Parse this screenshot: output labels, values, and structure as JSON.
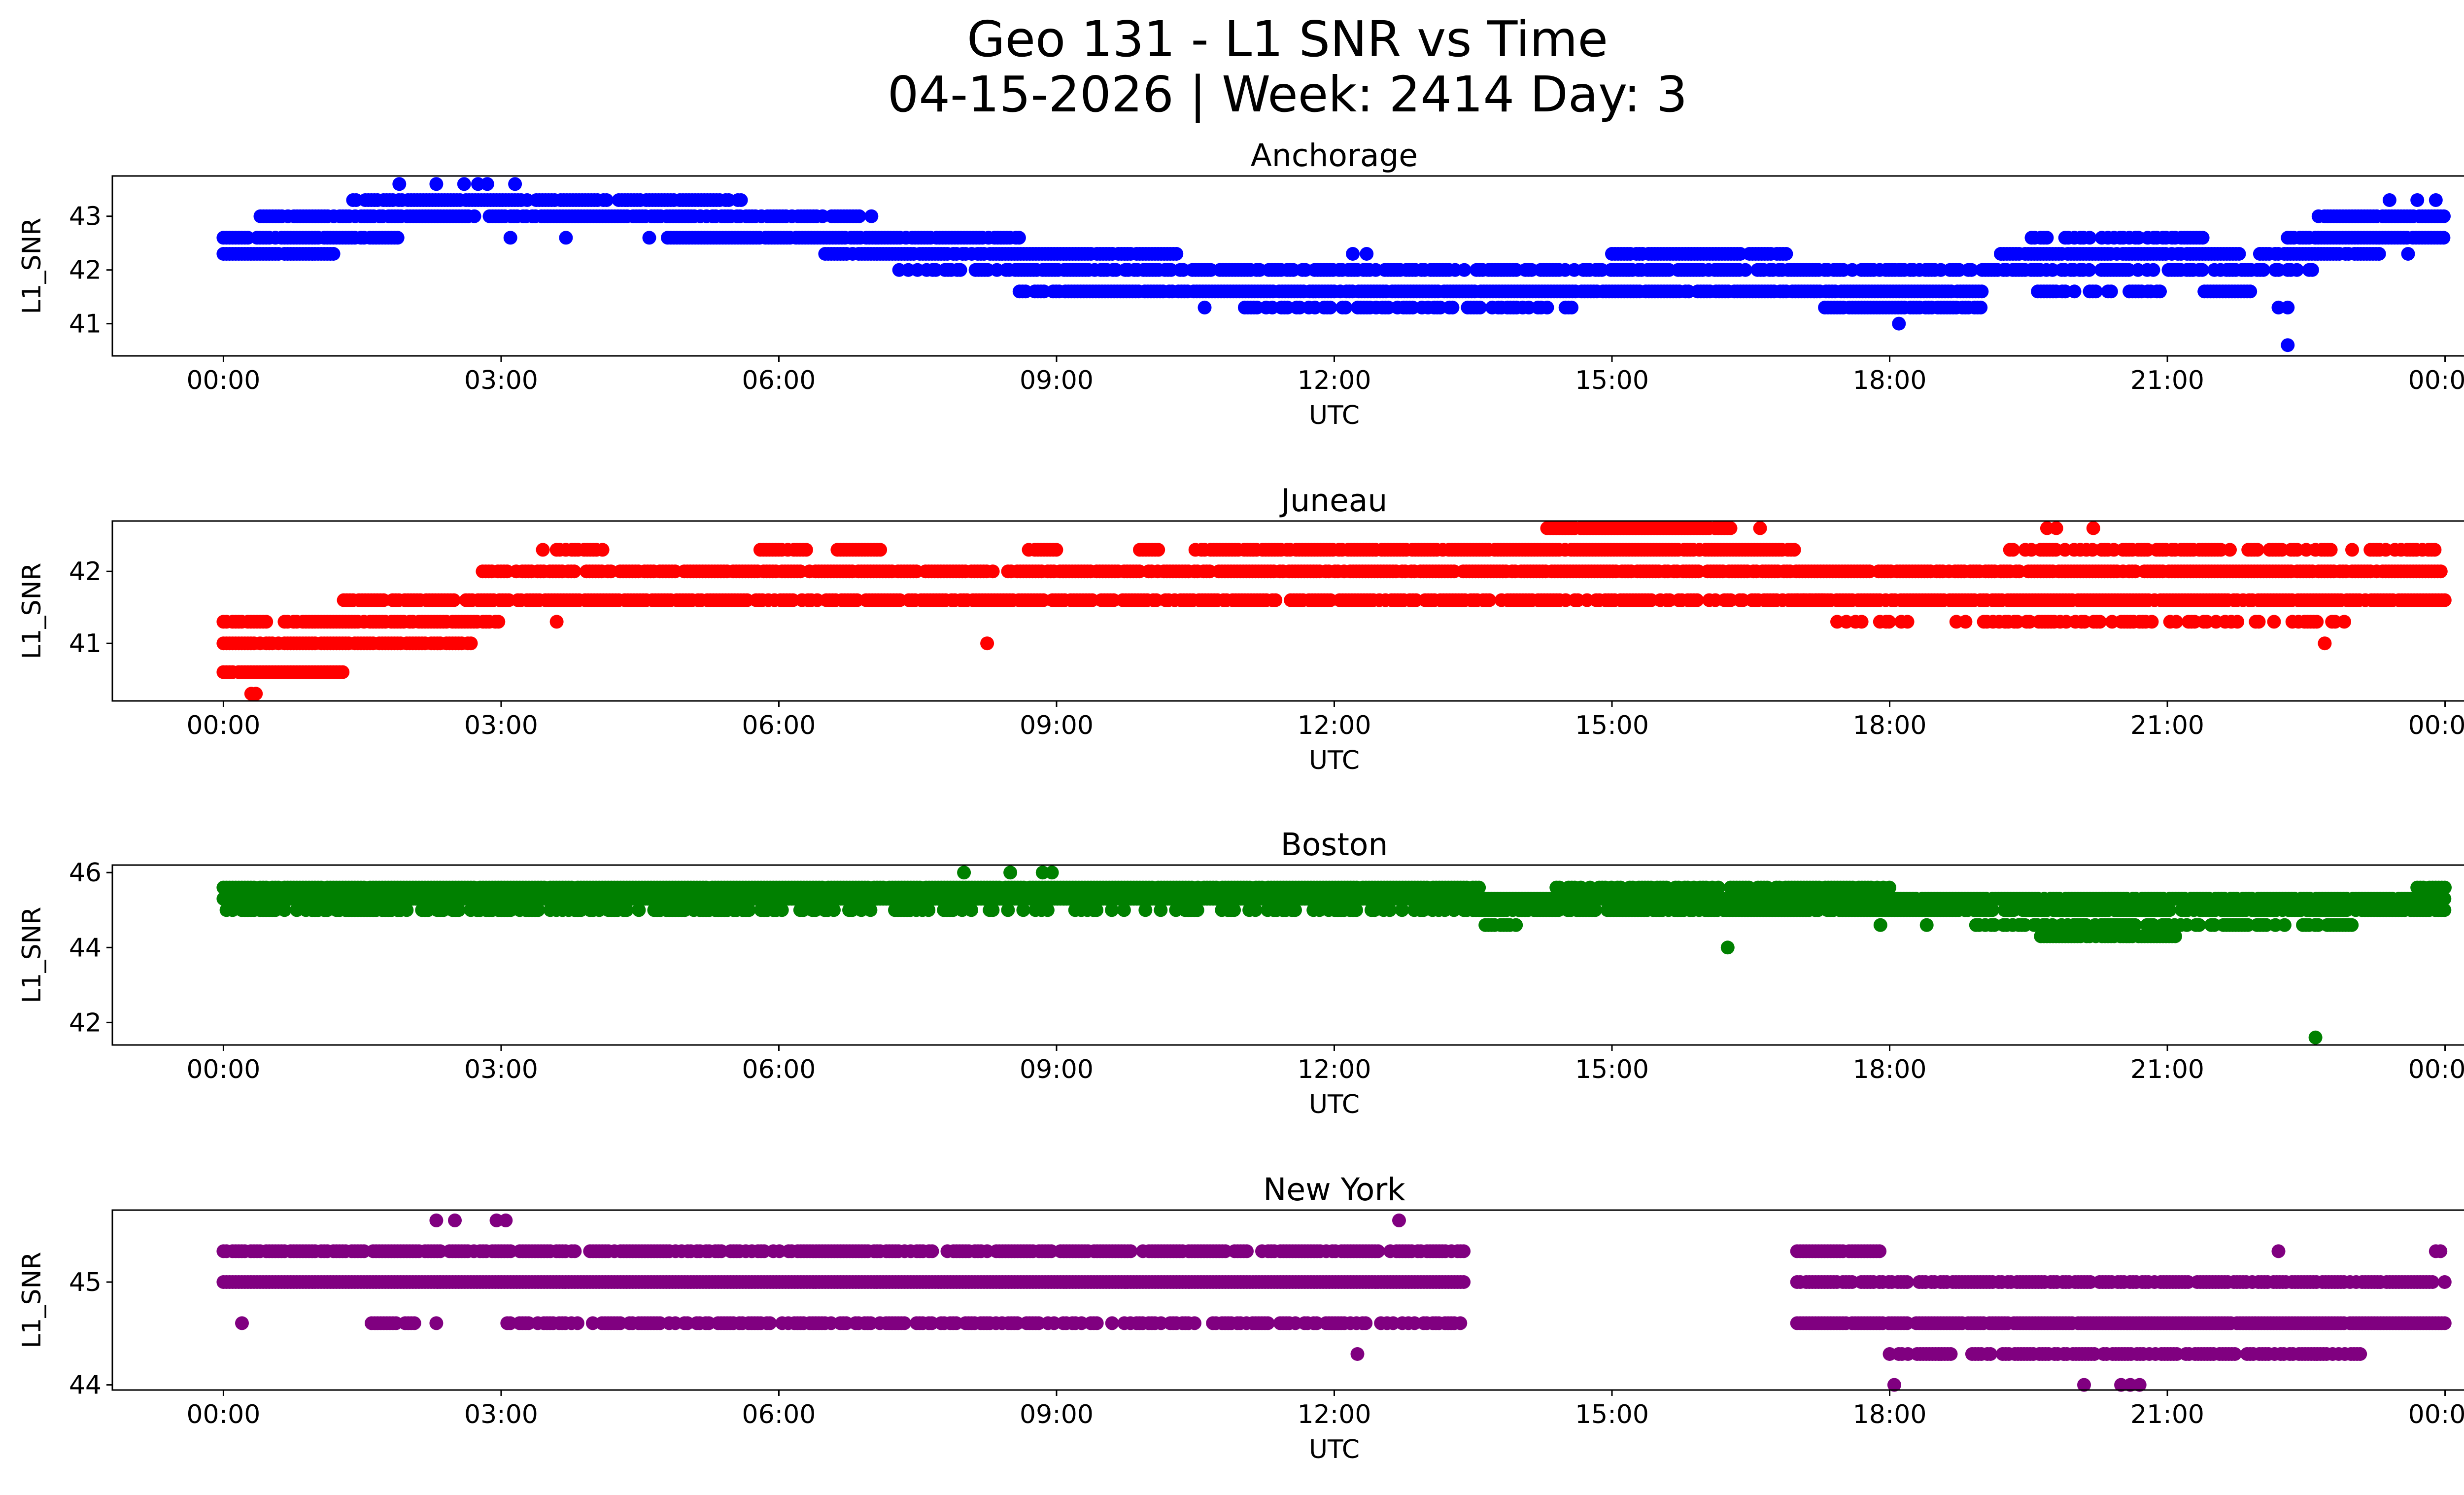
{
  "figure": {
    "title_line1": "Geo 131 - L1 SNR vs Time",
    "title_line2": "04-15-2026 | Week: 2414 Day: 3"
  },
  "chart_data": [
    {
      "type": "scatter",
      "title": "Anchorage",
      "xlabel": "UTC",
      "ylabel": "L1_SNR",
      "color": "#0000ff",
      "xlim_hours": [
        -1.2,
        25.2
      ],
      "ylim": [
        40.4,
        43.75
      ],
      "yticks": [
        41,
        42,
        43
      ],
      "xticks": [
        0,
        3,
        6,
        9,
        12,
        15,
        18,
        21,
        24
      ],
      "xtick_labels": [
        "00:00",
        "03:00",
        "06:00",
        "09:00",
        "12:00",
        "15:00",
        "18:00",
        "21:00",
        "00:00"
      ],
      "bands": [
        {
          "y": 42.3,
          "x_start": 0.0,
          "x_end": 1.2,
          "density": 0.9
        },
        {
          "y": 42.6,
          "x_start": 0.0,
          "x_end": 1.9,
          "density": 0.9
        },
        {
          "y": 43.0,
          "x_start": 0.4,
          "x_end": 6.9,
          "density": 0.85
        },
        {
          "y": 43.3,
          "x_start": 1.4,
          "x_end": 5.6,
          "density": 0.9
        },
        {
          "y": 42.6,
          "x_start": 4.8,
          "x_end": 8.6,
          "density": 0.9
        },
        {
          "y": 42.3,
          "x_start": 6.5,
          "x_end": 10.3,
          "density": 0.9
        },
        {
          "y": 42.0,
          "x_start": 7.3,
          "x_end": 18.9,
          "density": 0.7
        },
        {
          "y": 41.6,
          "x_start": 8.6,
          "x_end": 19.0,
          "density": 0.85
        },
        {
          "y": 41.3,
          "x_start": 11.0,
          "x_end": 14.6,
          "density": 0.55
        },
        {
          "y": 41.3,
          "x_start": 17.3,
          "x_end": 19.0,
          "density": 0.9
        },
        {
          "y": 42.3,
          "x_start": 15.0,
          "x_end": 16.9,
          "density": 0.9
        },
        {
          "y": 42.3,
          "x_start": 19.2,
          "x_end": 21.8,
          "density": 0.9
        },
        {
          "y": 42.6,
          "x_start": 19.5,
          "x_end": 21.4,
          "density": 0.6
        },
        {
          "y": 42.0,
          "x_start": 19.0,
          "x_end": 22.6,
          "density": 0.6
        },
        {
          "y": 41.6,
          "x_start": 19.6,
          "x_end": 21.0,
          "density": 0.5
        },
        {
          "y": 41.6,
          "x_start": 21.4,
          "x_end": 21.9,
          "density": 0.9
        },
        {
          "y": 42.3,
          "x_start": 22.0,
          "x_end": 23.3,
          "density": 0.9
        },
        {
          "y": 42.6,
          "x_start": 22.3,
          "x_end": 24.0,
          "density": 0.9
        },
        {
          "y": 43.0,
          "x_start": 22.6,
          "x_end": 24.0,
          "density": 0.9
        }
      ],
      "points": [
        [
          1.9,
          43.6
        ],
        [
          2.3,
          43.6
        ],
        [
          2.6,
          43.6
        ],
        [
          2.75,
          43.6
        ],
        [
          2.85,
          43.6
        ],
        [
          3.15,
          43.6
        ],
        [
          3.1,
          42.6
        ],
        [
          3.7,
          42.6
        ],
        [
          4.6,
          42.6
        ],
        [
          7.0,
          43.0
        ],
        [
          10.6,
          41.3
        ],
        [
          12.2,
          42.3
        ],
        [
          12.35,
          42.3
        ],
        [
          17.5,
          42.0
        ],
        [
          18.1,
          42.0
        ],
        [
          18.1,
          41.0
        ],
        [
          22.2,
          41.3
        ],
        [
          22.3,
          41.3
        ],
        [
          22.3,
          40.6
        ],
        [
          23.4,
          43.3
        ],
        [
          23.7,
          43.3
        ],
        [
          23.9,
          43.3
        ],
        [
          23.6,
          42.3
        ]
      ]
    },
    {
      "type": "scatter",
      "title": "Juneau",
      "xlabel": "UTC",
      "ylabel": "L1_SNR",
      "color": "#ff0000",
      "xlim_hours": [
        -1.2,
        25.2
      ],
      "ylim": [
        40.2,
        42.7
      ],
      "yticks": [
        41,
        42
      ],
      "xticks": [
        0,
        3,
        6,
        9,
        12,
        15,
        18,
        21,
        24
      ],
      "xtick_labels": [
        "00:00",
        "03:00",
        "06:00",
        "09:00",
        "12:00",
        "15:00",
        "18:00",
        "21:00",
        "00:00"
      ],
      "bands": [
        {
          "y": 41.0,
          "x_start": 0.0,
          "x_end": 2.7,
          "density": 0.85
        },
        {
          "y": 41.3,
          "x_start": 0.0,
          "x_end": 3.0,
          "density": 0.8
        },
        {
          "y": 40.6,
          "x_start": 0.0,
          "x_end": 1.3,
          "density": 0.85
        },
        {
          "y": 41.6,
          "x_start": 1.3,
          "x_end": 17.3,
          "density": 0.75
        },
        {
          "y": 42.0,
          "x_start": 2.8,
          "x_end": 24.0,
          "density": 0.85
        },
        {
          "y": 42.3,
          "x_start": 3.6,
          "x_end": 4.1,
          "density": 0.9
        },
        {
          "y": 42.3,
          "x_start": 5.8,
          "x_end": 6.3,
          "density": 0.9
        },
        {
          "y": 42.3,
          "x_start": 6.6,
          "x_end": 7.1,
          "density": 0.9
        },
        {
          "y": 42.3,
          "x_start": 8.7,
          "x_end": 9.0,
          "density": 0.9
        },
        {
          "y": 42.3,
          "x_start": 9.9,
          "x_end": 10.1,
          "density": 0.9
        },
        {
          "y": 42.3,
          "x_start": 10.5,
          "x_end": 17.0,
          "density": 0.9
        },
        {
          "y": 42.6,
          "x_start": 14.3,
          "x_end": 16.3,
          "density": 0.95
        },
        {
          "y": 41.6,
          "x_start": 17.0,
          "x_end": 24.0,
          "density": 0.9
        },
        {
          "y": 41.3,
          "x_start": 17.4,
          "x_end": 23.0,
          "density": 0.45
        },
        {
          "y": 42.3,
          "x_start": 19.3,
          "x_end": 23.9,
          "density": 0.5
        }
      ],
      "points": [
        [
          0.35,
          40.3
        ],
        [
          0.3,
          40.3
        ],
        [
          8.25,
          41.0
        ],
        [
          3.45,
          42.3
        ],
        [
          3.6,
          41.3
        ],
        [
          16.6,
          42.6
        ],
        [
          19.7,
          42.6
        ],
        [
          19.8,
          42.6
        ],
        [
          20.2,
          42.6
        ],
        [
          22.7,
          41.0
        ]
      ]
    },
    {
      "type": "scatter",
      "title": "Boston",
      "xlabel": "UTC",
      "ylabel": "L1_SNR",
      "color": "#008000",
      "xlim_hours": [
        -1.2,
        25.2
      ],
      "ylim": [
        41.4,
        46.2
      ],
      "yticks": [
        42,
        44,
        46
      ],
      "xticks": [
        0,
        3,
        6,
        9,
        12,
        15,
        18,
        21,
        24
      ],
      "xtick_labels": [
        "00:00",
        "03:00",
        "06:00",
        "09:00",
        "12:00",
        "15:00",
        "18:00",
        "21:00",
        "00:00"
      ],
      "bands": [
        {
          "y": 45.6,
          "x_start": 0.0,
          "x_end": 13.6,
          "density": 0.95
        },
        {
          "y": 45.3,
          "x_start": 0.0,
          "x_end": 13.6,
          "density": 0.95
        },
        {
          "y": 45.0,
          "x_start": 0.0,
          "x_end": 6.0,
          "density": 0.7
        },
        {
          "y": 45.0,
          "x_start": 6.0,
          "x_end": 13.4,
          "density": 0.35
        },
        {
          "y": 45.0,
          "x_start": 13.4,
          "x_end": 24.0,
          "density": 0.85
        },
        {
          "y": 45.3,
          "x_start": 13.4,
          "x_end": 24.0,
          "density": 0.9
        },
        {
          "y": 45.6,
          "x_start": 14.4,
          "x_end": 18.0,
          "density": 0.7
        },
        {
          "y": 44.6,
          "x_start": 13.6,
          "x_end": 14.0,
          "density": 0.9
        },
        {
          "y": 44.6,
          "x_start": 18.9,
          "x_end": 23.0,
          "density": 0.6
        },
        {
          "y": 44.3,
          "x_start": 19.6,
          "x_end": 21.1,
          "density": 0.85
        },
        {
          "y": 45.6,
          "x_start": 23.7,
          "x_end": 24.0,
          "density": 0.9
        }
      ],
      "points": [
        [
          8.0,
          46.0
        ],
        [
          8.5,
          46.0
        ],
        [
          8.85,
          46.0
        ],
        [
          8.95,
          46.0
        ],
        [
          16.25,
          44.0
        ],
        [
          17.9,
          44.6
        ],
        [
          18.4,
          44.6
        ],
        [
          22.6,
          41.6
        ]
      ]
    },
    {
      "type": "scatter",
      "title": "New York",
      "xlabel": "UTC",
      "ylabel": "L1_SNR",
      "color": "#800080",
      "xlim_hours": [
        -1.2,
        25.2
      ],
      "ylim": [
        43.95,
        45.7
      ],
      "yticks": [
        44,
        45
      ],
      "xticks": [
        0,
        3,
        6,
        9,
        12,
        15,
        18,
        21,
        24
      ],
      "xtick_labels": [
        "00:00",
        "03:00",
        "06:00",
        "09:00",
        "12:00",
        "15:00",
        "18:00",
        "21:00",
        "00:00"
      ],
      "bands": [
        {
          "y": 45.0,
          "x_start": 0.0,
          "x_end": 13.4,
          "density": 1.0
        },
        {
          "y": 45.3,
          "x_start": 0.0,
          "x_end": 13.4,
          "density": 0.8
        },
        {
          "y": 44.6,
          "x_start": 1.6,
          "x_end": 2.1,
          "density": 0.9
        },
        {
          "y": 44.6,
          "x_start": 3.0,
          "x_end": 13.4,
          "density": 0.6
        },
        {
          "y": 45.0,
          "x_start": 17.0,
          "x_end": 24.0,
          "density": 0.85
        },
        {
          "y": 45.3,
          "x_start": 17.0,
          "x_end": 17.9,
          "density": 0.9
        },
        {
          "y": 44.6,
          "x_start": 17.0,
          "x_end": 24.0,
          "density": 0.95
        },
        {
          "y": 44.3,
          "x_start": 18.0,
          "x_end": 23.1,
          "density": 0.75
        }
      ],
      "points": [
        [
          0.2,
          44.6
        ],
        [
          2.3,
          44.6
        ],
        [
          2.3,
          45.6
        ],
        [
          2.5,
          45.6
        ],
        [
          2.95,
          45.6
        ],
        [
          3.05,
          45.6
        ],
        [
          12.25,
          44.3
        ],
        [
          12.7,
          45.6
        ],
        [
          18.05,
          44.0
        ],
        [
          20.1,
          44.0
        ],
        [
          20.5,
          44.0
        ],
        [
          20.6,
          44.0
        ],
        [
          20.7,
          44.0
        ],
        [
          22.2,
          45.3
        ],
        [
          23.9,
          45.3
        ],
        [
          23.95,
          45.3
        ]
      ]
    }
  ]
}
